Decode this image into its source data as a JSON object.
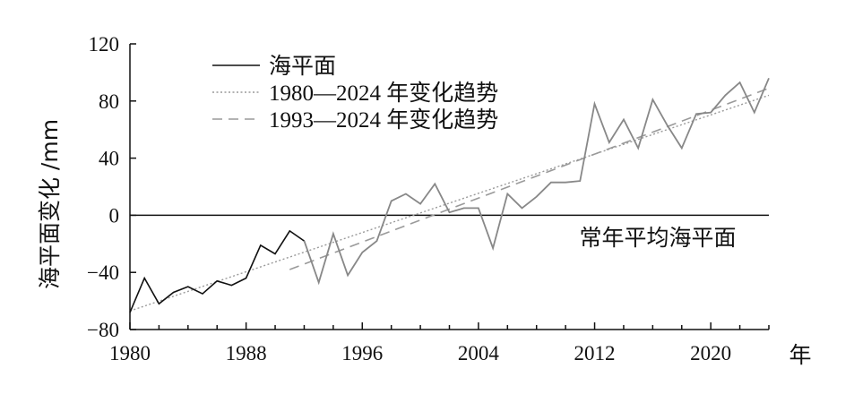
{
  "chart_data": {
    "type": "line",
    "title": "",
    "xlabel": "年",
    "ylabel": "海平面变化 /mm",
    "xlim": [
      1980,
      2024
    ],
    "ylim": [
      -80,
      120
    ],
    "x_ticks": [
      "1980",
      "1988",
      "1996",
      "2004",
      "2012",
      "2020"
    ],
    "y_ticks": [
      "−80",
      "−40",
      "0",
      "40",
      "80",
      "120"
    ],
    "reference_line": {
      "y": 0,
      "label": "常年平均海平面"
    },
    "legend": {
      "placement": "top-left",
      "entries": [
        "海平面",
        "1980—2024 年变化趋势",
        "1993—2024 年变化趋势"
      ]
    },
    "series": [
      {
        "name": "海平面",
        "colors": {
          "before_1993": "#111111",
          "from_1993": "#888888"
        },
        "x": [
          1980,
          1981,
          1982,
          1983,
          1984,
          1985,
          1986,
          1987,
          1988,
          1989,
          1990,
          1991,
          1992,
          1993,
          1994,
          1995,
          1996,
          1997,
          1998,
          1999,
          2000,
          2001,
          2002,
          2003,
          2004,
          2005,
          2006,
          2007,
          2008,
          2009,
          2010,
          2011,
          2012,
          2013,
          2014,
          2015,
          2016,
          2017,
          2018,
          2019,
          2020,
          2021,
          2022,
          2023,
          2024
        ],
        "y": [
          -68,
          -44,
          -62,
          -54,
          -50,
          -55,
          -46,
          -49,
          -44,
          -21,
          -27,
          -11,
          -18,
          -47,
          -13,
          -42,
          -26,
          -18,
          10,
          15,
          8,
          22,
          2,
          5,
          5,
          -23,
          15,
          5,
          13,
          23,
          23,
          24,
          78,
          51,
          67,
          47,
          81,
          63,
          47,
          71,
          72,
          84,
          93,
          72,
          96
        ]
      },
      {
        "name": "1980—2024 年变化趋势",
        "style": "dotted",
        "color": "#9a9a9a",
        "x": [
          1980,
          2024
        ],
        "y": [
          -67,
          84
        ]
      },
      {
        "name": "1993—2024 年变化趋势",
        "style": "dashed",
        "color": "#9a9a9a",
        "x": [
          1991,
          2024
        ],
        "y": [
          -38,
          89
        ]
      }
    ]
  }
}
